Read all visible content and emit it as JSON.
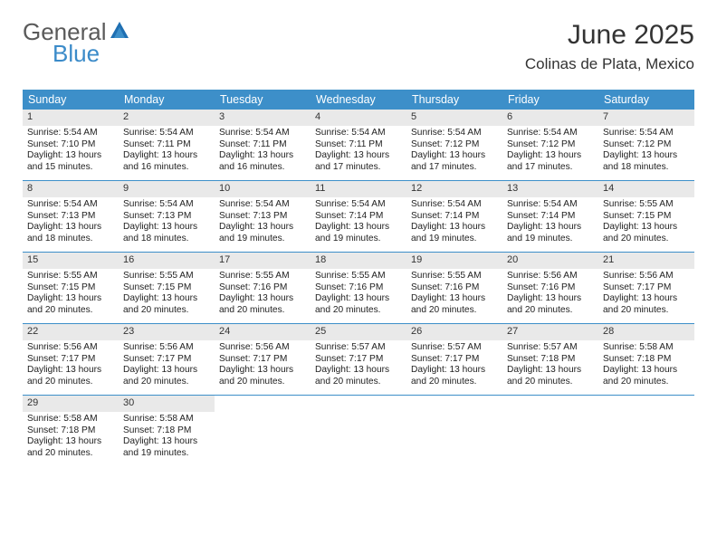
{
  "brand": {
    "text_general": "General",
    "text_blue": "Blue",
    "general_color": "#5a5a5a",
    "blue_color": "#3b8bc9"
  },
  "header": {
    "month_title": "June 2025",
    "location": "Colinas de Plata, Mexico",
    "title_color": "#333333",
    "title_fontsize": 30,
    "location_fontsize": 17
  },
  "calendar": {
    "header_bg": "#3d8fc9",
    "header_text_color": "#ffffff",
    "row_border_color": "#3d8fc9",
    "daynum_bg": "#e9e9e9",
    "daynum_color": "#333333",
    "text_color": "#222222",
    "days_of_week": [
      "Sunday",
      "Monday",
      "Tuesday",
      "Wednesday",
      "Thursday",
      "Friday",
      "Saturday"
    ],
    "weeks": [
      [
        {
          "n": "1",
          "sr": "Sunrise: 5:54 AM",
          "ss": "Sunset: 7:10 PM",
          "dl": "Daylight: 13 hours and 15 minutes."
        },
        {
          "n": "2",
          "sr": "Sunrise: 5:54 AM",
          "ss": "Sunset: 7:11 PM",
          "dl": "Daylight: 13 hours and 16 minutes."
        },
        {
          "n": "3",
          "sr": "Sunrise: 5:54 AM",
          "ss": "Sunset: 7:11 PM",
          "dl": "Daylight: 13 hours and 16 minutes."
        },
        {
          "n": "4",
          "sr": "Sunrise: 5:54 AM",
          "ss": "Sunset: 7:11 PM",
          "dl": "Daylight: 13 hours and 17 minutes."
        },
        {
          "n": "5",
          "sr": "Sunrise: 5:54 AM",
          "ss": "Sunset: 7:12 PM",
          "dl": "Daylight: 13 hours and 17 minutes."
        },
        {
          "n": "6",
          "sr": "Sunrise: 5:54 AM",
          "ss": "Sunset: 7:12 PM",
          "dl": "Daylight: 13 hours and 17 minutes."
        },
        {
          "n": "7",
          "sr": "Sunrise: 5:54 AM",
          "ss": "Sunset: 7:12 PM",
          "dl": "Daylight: 13 hours and 18 minutes."
        }
      ],
      [
        {
          "n": "8",
          "sr": "Sunrise: 5:54 AM",
          "ss": "Sunset: 7:13 PM",
          "dl": "Daylight: 13 hours and 18 minutes."
        },
        {
          "n": "9",
          "sr": "Sunrise: 5:54 AM",
          "ss": "Sunset: 7:13 PM",
          "dl": "Daylight: 13 hours and 18 minutes."
        },
        {
          "n": "10",
          "sr": "Sunrise: 5:54 AM",
          "ss": "Sunset: 7:13 PM",
          "dl": "Daylight: 13 hours and 19 minutes."
        },
        {
          "n": "11",
          "sr": "Sunrise: 5:54 AM",
          "ss": "Sunset: 7:14 PM",
          "dl": "Daylight: 13 hours and 19 minutes."
        },
        {
          "n": "12",
          "sr": "Sunrise: 5:54 AM",
          "ss": "Sunset: 7:14 PM",
          "dl": "Daylight: 13 hours and 19 minutes."
        },
        {
          "n": "13",
          "sr": "Sunrise: 5:54 AM",
          "ss": "Sunset: 7:14 PM",
          "dl": "Daylight: 13 hours and 19 minutes."
        },
        {
          "n": "14",
          "sr": "Sunrise: 5:55 AM",
          "ss": "Sunset: 7:15 PM",
          "dl": "Daylight: 13 hours and 20 minutes."
        }
      ],
      [
        {
          "n": "15",
          "sr": "Sunrise: 5:55 AM",
          "ss": "Sunset: 7:15 PM",
          "dl": "Daylight: 13 hours and 20 minutes."
        },
        {
          "n": "16",
          "sr": "Sunrise: 5:55 AM",
          "ss": "Sunset: 7:15 PM",
          "dl": "Daylight: 13 hours and 20 minutes."
        },
        {
          "n": "17",
          "sr": "Sunrise: 5:55 AM",
          "ss": "Sunset: 7:16 PM",
          "dl": "Daylight: 13 hours and 20 minutes."
        },
        {
          "n": "18",
          "sr": "Sunrise: 5:55 AM",
          "ss": "Sunset: 7:16 PM",
          "dl": "Daylight: 13 hours and 20 minutes."
        },
        {
          "n": "19",
          "sr": "Sunrise: 5:55 AM",
          "ss": "Sunset: 7:16 PM",
          "dl": "Daylight: 13 hours and 20 minutes."
        },
        {
          "n": "20",
          "sr": "Sunrise: 5:56 AM",
          "ss": "Sunset: 7:16 PM",
          "dl": "Daylight: 13 hours and 20 minutes."
        },
        {
          "n": "21",
          "sr": "Sunrise: 5:56 AM",
          "ss": "Sunset: 7:17 PM",
          "dl": "Daylight: 13 hours and 20 minutes."
        }
      ],
      [
        {
          "n": "22",
          "sr": "Sunrise: 5:56 AM",
          "ss": "Sunset: 7:17 PM",
          "dl": "Daylight: 13 hours and 20 minutes."
        },
        {
          "n": "23",
          "sr": "Sunrise: 5:56 AM",
          "ss": "Sunset: 7:17 PM",
          "dl": "Daylight: 13 hours and 20 minutes."
        },
        {
          "n": "24",
          "sr": "Sunrise: 5:56 AM",
          "ss": "Sunset: 7:17 PM",
          "dl": "Daylight: 13 hours and 20 minutes."
        },
        {
          "n": "25",
          "sr": "Sunrise: 5:57 AM",
          "ss": "Sunset: 7:17 PM",
          "dl": "Daylight: 13 hours and 20 minutes."
        },
        {
          "n": "26",
          "sr": "Sunrise: 5:57 AM",
          "ss": "Sunset: 7:17 PM",
          "dl": "Daylight: 13 hours and 20 minutes."
        },
        {
          "n": "27",
          "sr": "Sunrise: 5:57 AM",
          "ss": "Sunset: 7:18 PM",
          "dl": "Daylight: 13 hours and 20 minutes."
        },
        {
          "n": "28",
          "sr": "Sunrise: 5:58 AM",
          "ss": "Sunset: 7:18 PM",
          "dl": "Daylight: 13 hours and 20 minutes."
        }
      ],
      [
        {
          "n": "29",
          "sr": "Sunrise: 5:58 AM",
          "ss": "Sunset: 7:18 PM",
          "dl": "Daylight: 13 hours and 20 minutes."
        },
        {
          "n": "30",
          "sr": "Sunrise: 5:58 AM",
          "ss": "Sunset: 7:18 PM",
          "dl": "Daylight: 13 hours and 19 minutes."
        },
        null,
        null,
        null,
        null,
        null
      ]
    ]
  }
}
